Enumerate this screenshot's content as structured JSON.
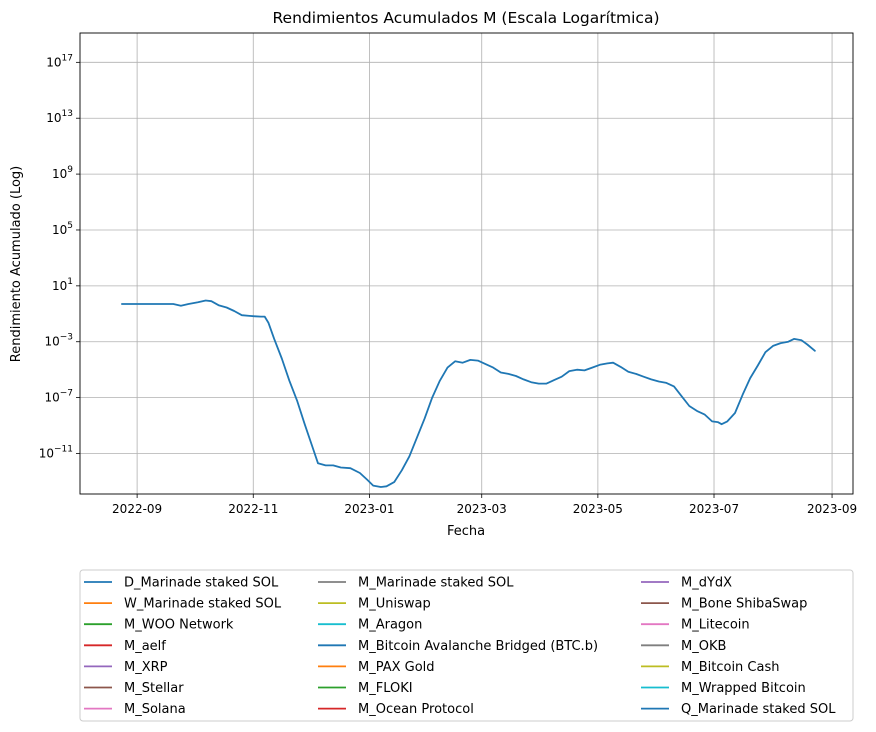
{
  "chart_data": {
    "type": "line",
    "title": "Rendimientos Acumulados M (Escala Logarítmica)",
    "xlabel": "Fecha",
    "ylabel": "Rendimiento Acumulado (Log)",
    "yscale": "log",
    "grid": true,
    "legend_placement": "bottom, below chart, 3 columns",
    "xlim": [
      "2022-08-02",
      "2023-09-12"
    ],
    "ylim_log10": [
      -13.9,
      19.1
    ],
    "x_ticks": [
      {
        "date": "2022-09-01",
        "label": "2022-09"
      },
      {
        "date": "2022-11-01",
        "label": "2022-11"
      },
      {
        "date": "2023-01-01",
        "label": "2023-01"
      },
      {
        "date": "2023-03-01",
        "label": "2023-03"
      },
      {
        "date": "2023-05-01",
        "label": "2023-05"
      },
      {
        "date": "2023-07-01",
        "label": "2023-07"
      },
      {
        "date": "2023-09-01",
        "label": "2023-09"
      }
    ],
    "y_ticks": [
      {
        "exp": -11,
        "base": "10",
        "sup": "−11"
      },
      {
        "exp": -7,
        "base": "10",
        "sup": "−7"
      },
      {
        "exp": -3,
        "base": "10",
        "sup": "−3"
      },
      {
        "exp": 1,
        "base": "10",
        "sup": "1"
      },
      {
        "exp": 5,
        "base": "10",
        "sup": "5"
      },
      {
        "exp": 9,
        "base": "10",
        "sup": "9"
      },
      {
        "exp": 13,
        "base": "10",
        "sup": "13"
      },
      {
        "exp": 17,
        "base": "10",
        "sup": "17"
      }
    ],
    "series": [
      {
        "name": "D_Marinade staked SOL",
        "color": "#1f77b4",
        "points": [
          [
            "2022-08-24",
            -0.3
          ],
          [
            "2022-09-05",
            -0.3
          ],
          [
            "2022-09-15",
            -0.3
          ],
          [
            "2022-09-20",
            -0.3
          ],
          [
            "2022-09-24",
            -0.42
          ],
          [
            "2022-09-28",
            -0.3
          ],
          [
            "2022-10-03",
            -0.18
          ],
          [
            "2022-10-07",
            -0.05
          ],
          [
            "2022-10-10",
            -0.1
          ],
          [
            "2022-10-14",
            -0.4
          ],
          [
            "2022-10-18",
            -0.55
          ],
          [
            "2022-10-22",
            -0.8
          ],
          [
            "2022-10-26",
            -1.1
          ],
          [
            "2022-10-30",
            -1.15
          ],
          [
            "2022-11-02",
            -1.18
          ],
          [
            "2022-11-05",
            -1.2
          ],
          [
            "2022-11-07",
            -1.2
          ],
          [
            "2022-11-09",
            -1.65
          ],
          [
            "2022-11-12",
            -2.8
          ],
          [
            "2022-11-16",
            -4.2
          ],
          [
            "2022-11-20",
            -5.8
          ],
          [
            "2022-11-24",
            -7.2
          ],
          [
            "2022-11-28",
            -8.9
          ],
          [
            "2022-12-02",
            -10.5
          ],
          [
            "2022-12-05",
            -11.7
          ],
          [
            "2022-12-09",
            -11.85
          ],
          [
            "2022-12-13",
            -11.85
          ],
          [
            "2022-12-17",
            -12.0
          ],
          [
            "2022-12-22",
            -12.05
          ],
          [
            "2022-12-27",
            -12.4
          ],
          [
            "2022-12-31",
            -12.9
          ],
          [
            "2023-01-03",
            -13.3
          ],
          [
            "2023-01-07",
            -13.4
          ],
          [
            "2023-01-10",
            -13.35
          ],
          [
            "2023-01-14",
            -13.05
          ],
          [
            "2023-01-18",
            -12.2
          ],
          [
            "2023-01-22",
            -11.2
          ],
          [
            "2023-01-26",
            -9.85
          ],
          [
            "2023-01-30",
            -8.5
          ],
          [
            "2023-02-03",
            -7.0
          ],
          [
            "2023-02-07",
            -5.8
          ],
          [
            "2023-02-11",
            -4.85
          ],
          [
            "2023-02-15",
            -4.4
          ],
          [
            "2023-02-19",
            -4.5
          ],
          [
            "2023-02-23",
            -4.3
          ],
          [
            "2023-02-27",
            -4.35
          ],
          [
            "2023-03-03",
            -4.6
          ],
          [
            "2023-03-07",
            -4.85
          ],
          [
            "2023-03-11",
            -5.2
          ],
          [
            "2023-03-15",
            -5.3
          ],
          [
            "2023-03-19",
            -5.45
          ],
          [
            "2023-03-23",
            -5.7
          ],
          [
            "2023-03-27",
            -5.9
          ],
          [
            "2023-03-31",
            -6.0
          ],
          [
            "2023-04-04",
            -6.0
          ],
          [
            "2023-04-08",
            -5.75
          ],
          [
            "2023-04-12",
            -5.5
          ],
          [
            "2023-04-16",
            -5.1
          ],
          [
            "2023-04-20",
            -5.0
          ],
          [
            "2023-04-24",
            -5.05
          ],
          [
            "2023-04-28",
            -4.85
          ],
          [
            "2023-05-02",
            -4.65
          ],
          [
            "2023-05-06",
            -4.55
          ],
          [
            "2023-05-09",
            -4.5
          ],
          [
            "2023-05-13",
            -4.8
          ],
          [
            "2023-05-17",
            -5.15
          ],
          [
            "2023-05-21",
            -5.3
          ],
          [
            "2023-05-25",
            -5.5
          ],
          [
            "2023-05-29",
            -5.7
          ],
          [
            "2023-06-02",
            -5.85
          ],
          [
            "2023-06-06",
            -5.95
          ],
          [
            "2023-06-10",
            -6.2
          ],
          [
            "2023-06-14",
            -6.9
          ],
          [
            "2023-06-18",
            -7.6
          ],
          [
            "2023-06-22",
            -7.95
          ],
          [
            "2023-06-26",
            -8.2
          ],
          [
            "2023-06-30",
            -8.7
          ],
          [
            "2023-07-03",
            -8.75
          ],
          [
            "2023-07-05",
            -8.9
          ],
          [
            "2023-07-08",
            -8.7
          ],
          [
            "2023-07-12",
            -8.1
          ],
          [
            "2023-07-16",
            -6.8
          ],
          [
            "2023-07-20",
            -5.6
          ],
          [
            "2023-07-24",
            -4.7
          ],
          [
            "2023-07-28",
            -3.75
          ],
          [
            "2023-08-01",
            -3.3
          ],
          [
            "2023-08-05",
            -3.1
          ],
          [
            "2023-08-09",
            -3.0
          ],
          [
            "2023-08-12",
            -2.8
          ],
          [
            "2023-08-16",
            -2.9
          ],
          [
            "2023-08-19",
            -3.2
          ],
          [
            "2023-08-23",
            -3.65
          ]
        ]
      }
    ]
  },
  "legend": {
    "columns": [
      [
        {
          "name": "D_Marinade staked SOL",
          "color": "#1f77b4"
        },
        {
          "name": "W_Marinade staked SOL",
          "color": "#ff7f0e"
        },
        {
          "name": "M_WOO Network",
          "color": "#2ca02c"
        },
        {
          "name": "M_aelf",
          "color": "#d62728"
        },
        {
          "name": "M_XRP",
          "color": "#9467bd"
        },
        {
          "name": "M_Stellar",
          "color": "#8c564b"
        },
        {
          "name": "M_Solana",
          "color": "#e377c2"
        }
      ],
      [
        {
          "name": "M_Marinade staked SOL",
          "color": "#7f7f7f"
        },
        {
          "name": "M_Uniswap",
          "color": "#bcbd22"
        },
        {
          "name": "M_Aragon",
          "color": "#17becf"
        },
        {
          "name": "M_Bitcoin Avalanche Bridged (BTC.b)",
          "color": "#1f77b4"
        },
        {
          "name": "M_PAX Gold",
          "color": "#ff7f0e"
        },
        {
          "name": "M_FLOKI",
          "color": "#2ca02c"
        },
        {
          "name": "M_Ocean Protocol",
          "color": "#d62728"
        }
      ],
      [
        {
          "name": "M_dYdX",
          "color": "#9467bd"
        },
        {
          "name": "M_Bone ShibaSwap",
          "color": "#8c564b"
        },
        {
          "name": "M_Litecoin",
          "color": "#e377c2"
        },
        {
          "name": "M_OKB",
          "color": "#7f7f7f"
        },
        {
          "name": "M_Bitcoin Cash",
          "color": "#bcbd22"
        },
        {
          "name": "M_Wrapped Bitcoin",
          "color": "#17becf"
        },
        {
          "name": "Q_Marinade staked SOL",
          "color": "#1f77b4"
        }
      ]
    ]
  }
}
